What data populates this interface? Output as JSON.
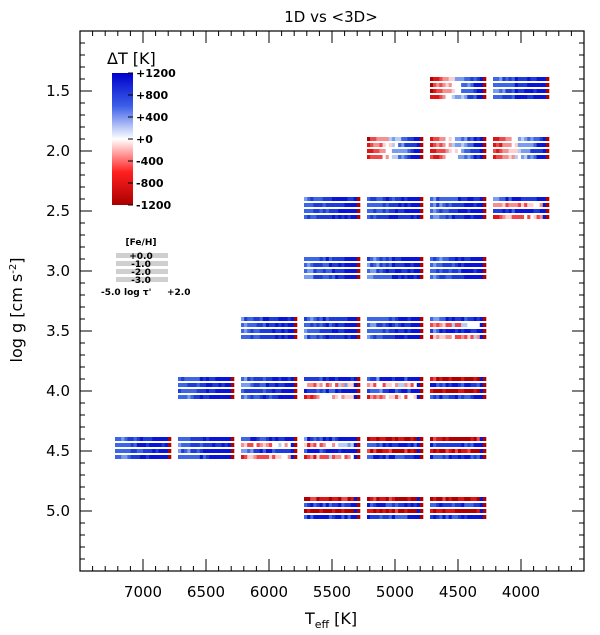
{
  "chart_data": {
    "type": "heatmap",
    "title": "1D vs <3D>",
    "xlabel": "T_eff [K]",
    "xlabel_main": "T",
    "xlabel_sub": "eff",
    "xlabel_unit": "[K]",
    "ylabel": "log g [cm s^-2]",
    "ylabel_main": "log g [cm s",
    "ylabel_sup": "-2",
    "ylabel_close": "]",
    "xlim": [
      7500,
      3500
    ],
    "ylim": [
      5.5,
      1.0
    ],
    "xticks": [
      7000,
      6500,
      6000,
      5500,
      5000,
      4500,
      4000
    ],
    "xtick_labels": [
      "7000",
      "6500",
      "6000",
      "5500",
      "5000",
      "4500",
      "4000"
    ],
    "yticks": [
      1.5,
      2.0,
      2.5,
      3.0,
      3.5,
      4.0,
      4.5,
      5.0
    ],
    "ytick_labels": [
      "1.5",
      "2.0",
      "2.5",
      "3.0",
      "3.5",
      "4.0",
      "4.5",
      "5.0"
    ],
    "colorbar": {
      "title": "ΔT [K]",
      "range": [
        -1200,
        1200
      ],
      "labels": [
        "+1200",
        "+800",
        "+400",
        "+0",
        "-400",
        "-800",
        "-1200"
      ],
      "values": [
        1200,
        800,
        400,
        0,
        -400,
        -800,
        -1200
      ],
      "high_color": "#0000cc",
      "mid_color": "#ffffff",
      "low_color": "#aa0000"
    },
    "inset_key": {
      "header": "[Fe/H]",
      "rows": [
        "+0.0",
        "-1.0",
        "-2.0",
        "-3.0"
      ],
      "axis_left": "-5.0",
      "axis_mid": "log τ'",
      "axis_right": "+2.0"
    },
    "grid_points": [
      {
        "teff": 4500,
        "logg": 1.5,
        "pattern": "red_start"
      },
      {
        "teff": 4000,
        "logg": 1.5,
        "pattern": "blue"
      },
      {
        "teff": 5000,
        "logg": 2.0,
        "pattern": "red_start"
      },
      {
        "teff": 4500,
        "logg": 2.0,
        "pattern": "red_start"
      },
      {
        "teff": 4000,
        "logg": 2.0,
        "pattern": "red_start"
      },
      {
        "teff": 5000,
        "logg": 2.5,
        "pattern": "blue"
      },
      {
        "teff": 4500,
        "logg": 2.5,
        "pattern": "blue"
      },
      {
        "teff": 4000,
        "logg": 2.5,
        "pattern": "mixed"
      },
      {
        "teff": 5500,
        "logg": 2.5,
        "pattern": "blue"
      },
      {
        "teff": 5500,
        "logg": 3.0,
        "pattern": "blue"
      },
      {
        "teff": 5000,
        "logg": 3.0,
        "pattern": "blue"
      },
      {
        "teff": 4500,
        "logg": 3.0,
        "pattern": "blue"
      },
      {
        "teff": 6000,
        "logg": 3.5,
        "pattern": "blue"
      },
      {
        "teff": 5500,
        "logg": 3.5,
        "pattern": "blue"
      },
      {
        "teff": 5000,
        "logg": 3.5,
        "pattern": "blue"
      },
      {
        "teff": 4500,
        "logg": 3.5,
        "pattern": "mixed"
      },
      {
        "teff": 6500,
        "logg": 4.0,
        "pattern": "blue"
      },
      {
        "teff": 6000,
        "logg": 4.0,
        "pattern": "blue"
      },
      {
        "teff": 5500,
        "logg": 4.0,
        "pattern": "mixed"
      },
      {
        "teff": 5000,
        "logg": 4.0,
        "pattern": "mixed"
      },
      {
        "teff": 4500,
        "logg": 4.0,
        "pattern": "red"
      },
      {
        "teff": 7000,
        "logg": 4.5,
        "pattern": "blue"
      },
      {
        "teff": 6500,
        "logg": 4.5,
        "pattern": "blue"
      },
      {
        "teff": 6000,
        "logg": 4.5,
        "pattern": "mixed"
      },
      {
        "teff": 5500,
        "logg": 4.5,
        "pattern": "mixed"
      },
      {
        "teff": 5000,
        "logg": 4.5,
        "pattern": "red"
      },
      {
        "teff": 4500,
        "logg": 4.5,
        "pattern": "red"
      },
      {
        "teff": 5500,
        "logg": 5.0,
        "pattern": "red"
      },
      {
        "teff": 5000,
        "logg": 5.0,
        "pattern": "red"
      },
      {
        "teff": 4500,
        "logg": 5.0,
        "pattern": "red"
      }
    ]
  }
}
